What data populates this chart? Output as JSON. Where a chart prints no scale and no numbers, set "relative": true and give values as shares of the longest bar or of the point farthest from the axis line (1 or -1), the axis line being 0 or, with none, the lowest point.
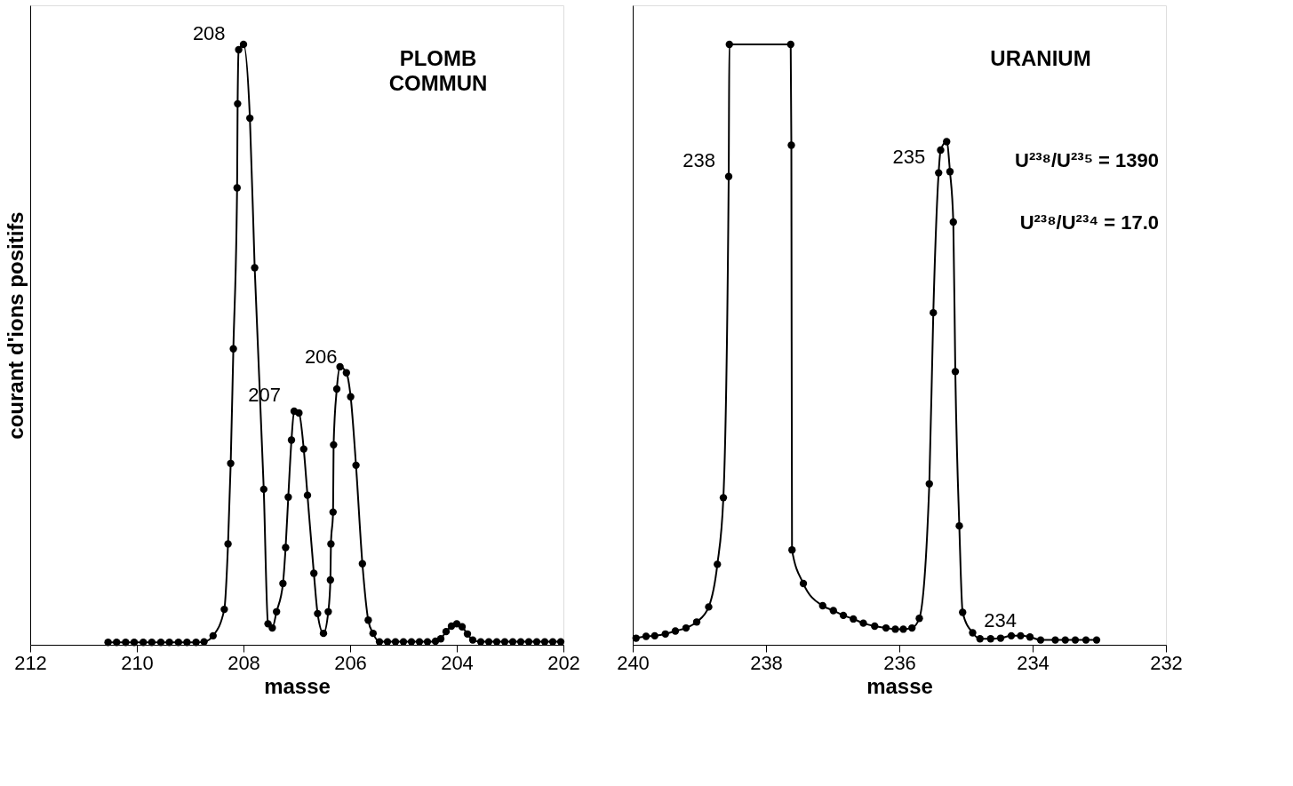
{
  "chart_data": [
    {
      "type": "line",
      "title": "PLOMB COMMUN",
      "xlabel": "masse",
      "ylabel": "courant d'ions positifs",
      "relative": true,
      "marker": "circle",
      "line_style": "solid",
      "grid": false,
      "xlim": [
        212,
        202
      ],
      "xticks": [
        212,
        210,
        208,
        206,
        204,
        202
      ],
      "x": [
        210.54,
        210.38,
        210.21,
        210.05,
        209.88,
        209.72,
        209.55,
        209.39,
        209.22,
        209.06,
        208.89,
        208.74,
        208.57,
        208.36,
        208.29,
        208.24,
        208.19,
        208.12,
        208.11,
        208.09,
        208.0,
        207.88,
        207.79,
        207.62,
        207.54,
        207.46,
        207.38,
        207.26,
        207.21,
        207.16,
        207.1,
        207.05,
        206.96,
        206.87,
        206.8,
        206.68,
        206.61,
        206.5,
        206.41,
        206.37,
        206.36,
        206.32,
        206.31,
        206.25,
        206.19,
        206.07,
        205.99,
        205.89,
        205.77,
        205.66,
        205.57,
        205.45,
        205.3,
        205.15,
        205.0,
        204.85,
        204.7,
        204.55,
        204.4,
        204.3,
        204.2,
        204.1,
        204.0,
        203.9,
        203.8,
        203.7,
        203.55,
        203.4,
        203.25,
        203.1,
        202.95,
        202.8,
        202.65,
        202.5,
        202.35,
        202.2,
        202.05
      ],
      "series": [
        {
          "color": "#000000",
          "values": [
            0.004,
            0.004,
            0.004,
            0.004,
            0.004,
            0.004,
            0.004,
            0.004,
            0.004,
            0.004,
            0.004,
            0.005,
            0.015,
            0.059,
            0.168,
            0.302,
            0.493,
            0.761,
            0.901,
            0.991,
            1.0,
            0.877,
            0.628,
            0.259,
            0.035,
            0.028,
            0.055,
            0.102,
            0.162,
            0.246,
            0.341,
            0.389,
            0.386,
            0.326,
            0.249,
            0.119,
            0.052,
            0.019,
            0.055,
            0.108,
            0.168,
            0.221,
            0.333,
            0.426,
            0.463,
            0.453,
            0.413,
            0.299,
            0.135,
            0.041,
            0.019,
            0.005,
            0.005,
            0.005,
            0.005,
            0.005,
            0.005,
            0.005,
            0.006,
            0.01,
            0.022,
            0.031,
            0.035,
            0.03,
            0.018,
            0.008,
            0.005,
            0.005,
            0.005,
            0.005,
            0.005,
            0.005,
            0.005,
            0.005,
            0.005,
            0.005,
            0.005
          ]
        }
      ],
      "annotations": [
        {
          "text": "208",
          "x": 208.09,
          "y": 0.991
        },
        {
          "text": "207",
          "x": 207.05,
          "y": 0.389
        },
        {
          "text": "206",
          "x": 205.99,
          "y": 0.453
        }
      ]
    },
    {
      "type": "line",
      "title": "URANIUM",
      "xlabel": "masse",
      "relative": true,
      "marker": "circle",
      "line_style": "solid",
      "grid": false,
      "xlim": [
        240,
        232
      ],
      "xticks": [
        240,
        238,
        236,
        234,
        232
      ],
      "x": [
        239.95,
        239.8,
        239.67,
        239.51,
        239.36,
        239.2,
        239.04,
        238.86,
        238.73,
        238.64,
        238.56,
        238.55,
        237.63,
        237.62,
        237.61,
        237.44,
        237.15,
        236.99,
        236.84,
        236.69,
        236.54,
        236.37,
        236.2,
        236.06,
        235.94,
        235.81,
        235.7,
        235.55,
        235.49,
        235.41,
        235.38,
        235.29,
        235.24,
        235.19,
        235.16,
        235.1,
        235.05,
        234.9,
        234.79,
        234.63,
        234.48,
        234.32,
        234.18,
        234.04,
        233.88,
        233.66,
        233.51,
        233.36,
        233.2,
        233.04
      ],
      "series": [
        {
          "color": "#000000",
          "values": [
            0.011,
            0.014,
            0.015,
            0.018,
            0.023,
            0.028,
            0.038,
            0.063,
            0.134,
            0.245,
            0.78,
            1.0,
            1.0,
            0.832,
            0.158,
            0.102,
            0.065,
            0.057,
            0.049,
            0.043,
            0.036,
            0.031,
            0.028,
            0.026,
            0.026,
            0.028,
            0.044,
            0.268,
            0.553,
            0.786,
            0.824,
            0.838,
            0.788,
            0.704,
            0.455,
            0.198,
            0.054,
            0.02,
            0.01,
            0.01,
            0.011,
            0.015,
            0.015,
            0.013,
            0.008,
            0.008,
            0.008,
            0.008,
            0.008,
            0.008
          ]
        }
      ],
      "annotations": [
        {
          "text": "238",
          "x": 238.56,
          "y": 0.78
        },
        {
          "text": "235",
          "x": 235.41,
          "y": 0.786
        },
        {
          "text": "234",
          "x": 234.04,
          "y": 0.013
        },
        "U²³⁸/U²³⁵ = 1390",
        "U²³⁸/U²³⁴ = 17.0"
      ]
    }
  ]
}
